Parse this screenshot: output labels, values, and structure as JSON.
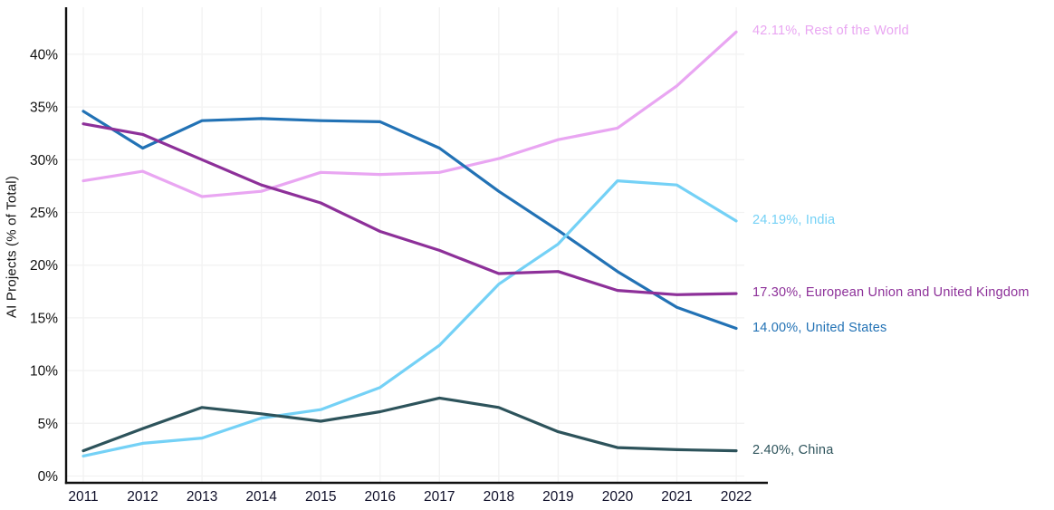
{
  "chart_data": {
    "type": "line",
    "title": "",
    "ylabel": "AI Projects (% of Total)",
    "xlabel": "",
    "x": [
      2011,
      2012,
      2013,
      2014,
      2015,
      2016,
      2017,
      2018,
      2019,
      2020,
      2021,
      2022
    ],
    "ylim": [
      0,
      44
    ],
    "yticks": [
      0,
      5,
      10,
      15,
      20,
      25,
      30,
      35,
      40
    ],
    "ytick_suffix": "%",
    "grid": true,
    "legend_position": "right-end-of-line-labels",
    "axis_color": "#111111",
    "gridline_color": "#f2f2f2",
    "tick_label_color": "#10102a",
    "series": [
      {
        "name": "Rest of the World",
        "color": "#e9a6f2",
        "end_label": "42.11%, Rest of the World",
        "end_value": "42.11%",
        "values": [
          28.0,
          28.9,
          26.5,
          27.0,
          28.8,
          28.6,
          28.8,
          30.1,
          31.9,
          33.0,
          37.0,
          42.11
        ]
      },
      {
        "name": "United States",
        "color": "#2272b5",
        "end_label": "14.00%, United States",
        "end_value": "14.00%",
        "values": [
          34.6,
          31.1,
          33.7,
          33.9,
          33.7,
          33.6,
          31.1,
          27.0,
          23.3,
          19.4,
          16.0,
          14.0
        ]
      },
      {
        "name": "India",
        "color": "#74d1f6",
        "end_label": "24.19%, India",
        "end_value": "24.19%",
        "values": [
          1.9,
          3.1,
          3.6,
          5.5,
          6.3,
          8.4,
          12.4,
          18.2,
          22.0,
          28.0,
          27.6,
          24.19
        ]
      },
      {
        "name": "European Union and United Kingdom",
        "color": "#8d3099",
        "end_label": "17.30%, European Union and United Kingdom",
        "end_value": "17.30%",
        "values": [
          33.4,
          32.4,
          30.0,
          27.6,
          25.9,
          23.2,
          21.4,
          19.2,
          19.4,
          17.6,
          17.2,
          17.3
        ]
      },
      {
        "name": "China",
        "color": "#2d535b",
        "end_label": "2.40%, China",
        "end_value": "2.40%",
        "values": [
          2.4,
          4.5,
          6.5,
          5.9,
          5.2,
          6.1,
          7.4,
          6.5,
          4.2,
          2.7,
          2.5,
          2.4
        ]
      }
    ]
  }
}
